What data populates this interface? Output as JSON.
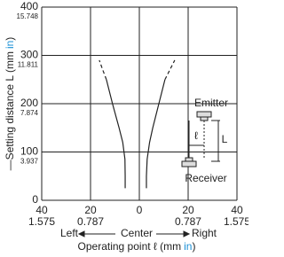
{
  "chart_data": {
    "type": "line",
    "xlabel": {
      "before": "Operating point ℓ (",
      "unit": "mm",
      "unit2": "in",
      "after": ")"
    },
    "ylabel": {
      "before": "—Setting distance L (",
      "unit": "mm",
      "unit2": "in",
      "after": ")"
    },
    "direction_labels": [
      "Left",
      "Center",
      "Right"
    ],
    "xlim": [
      -40,
      40
    ],
    "ylim": [
      0,
      400
    ],
    "xticks": [
      {
        "value": -40,
        "label": "40"
      },
      {
        "value": -20,
        "label": "20"
      },
      0,
      20,
      40
    ],
    "yticks": [
      0,
      100,
      200,
      300,
      400
    ],
    "x2lim": [
      -1.575,
      1.575
    ],
    "x2ticks": [
      {
        "value": -1.575,
        "label": "1.575"
      },
      {
        "value": -0.787,
        "label": "0.787"
      },
      0.787,
      1.575
    ],
    "y2lim": [
      0,
      15.748
    ],
    "y2ticks": [
      3.937,
      7.874,
      11.811,
      15.748
    ],
    "secondary_color": "#1a8fd6",
    "grid": true,
    "series": [
      {
        "color": "#222222",
        "dashed": false,
        "x": [
          -5.8,
          -5.8,
          -5.9,
          -6.8,
          -8.3,
          -11,
          -13.5
        ],
        "y": [
          25,
          50,
          85,
          120,
          150,
          200,
          250
        ]
      },
      {
        "color": "#222222",
        "dashed": true,
        "x": [
          -13.5,
          -15,
          -16.4
        ],
        "y": [
          250,
          270,
          290
        ]
      },
      {
        "color": "#222222",
        "dashed": false,
        "x": [
          2.9,
          2.9,
          3.2,
          4.2,
          5.5,
          8,
          10.5
        ],
        "y": [
          25,
          50,
          85,
          120,
          150,
          200,
          250
        ]
      },
      {
        "color": "#222222",
        "dashed": true,
        "x": [
          10.5,
          12.5,
          14.5
        ],
        "y": [
          250,
          270,
          290
        ]
      }
    ],
    "annotations": {
      "emitter": "Emitter",
      "receiver": "Receiver",
      "small_l": "ℓ",
      "big_l": "L"
    }
  }
}
